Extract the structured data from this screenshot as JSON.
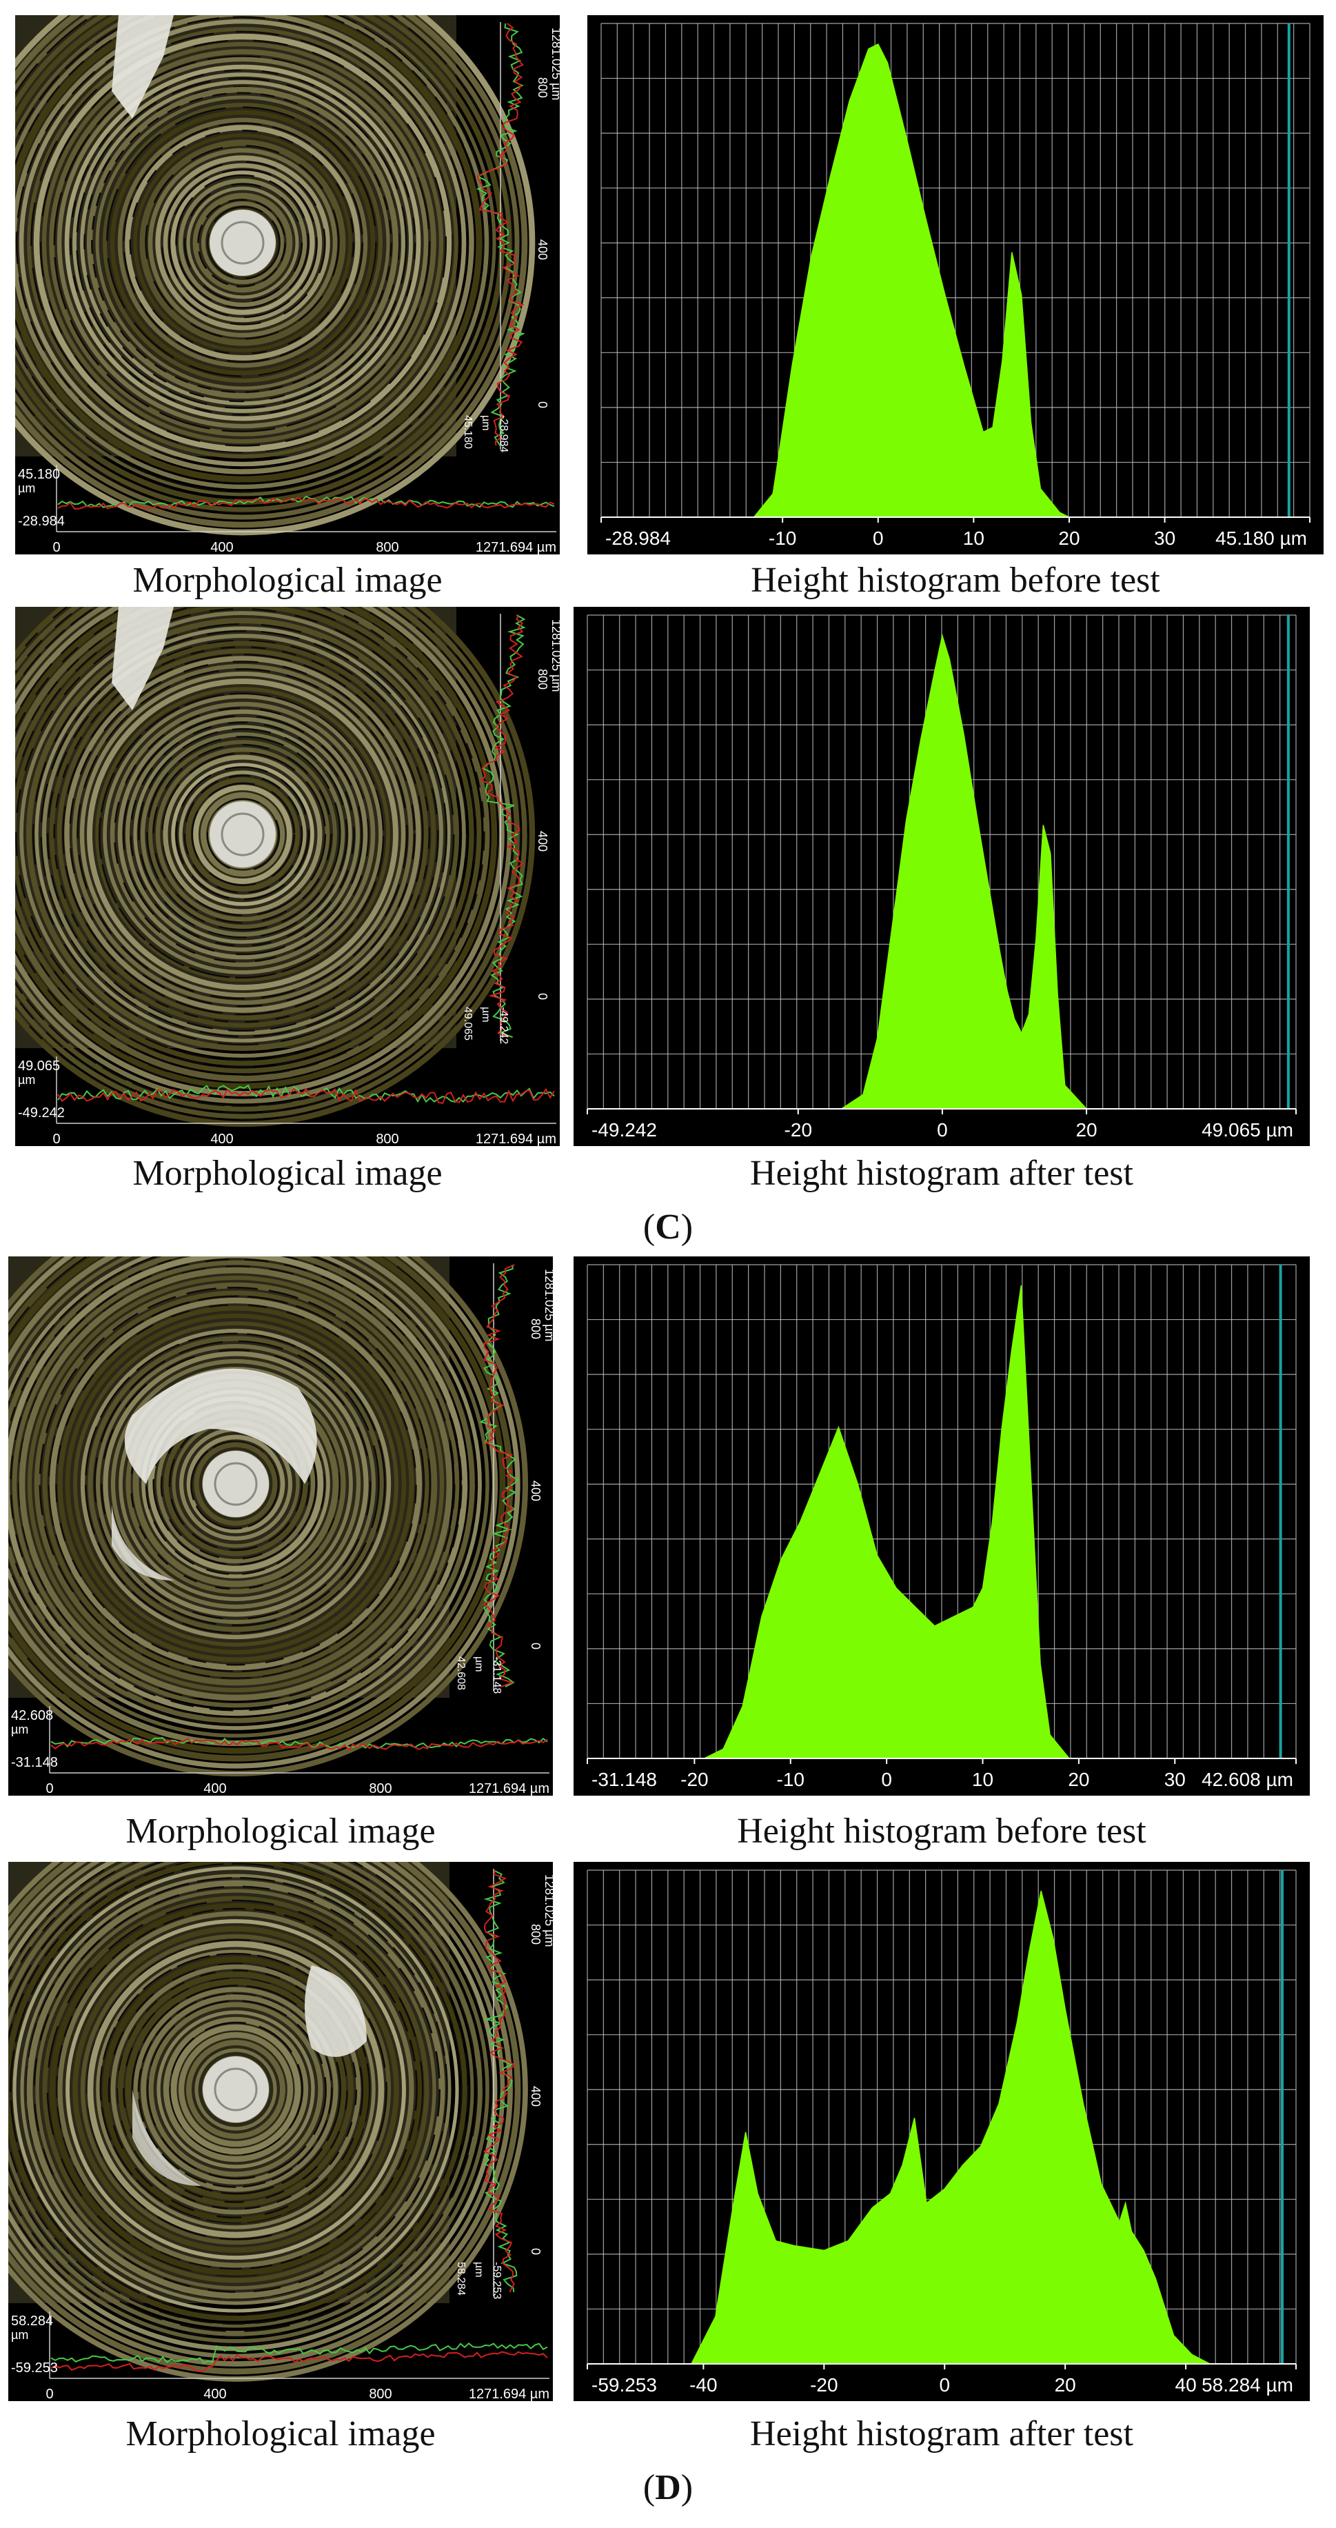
{
  "captions": {
    "morph": "Morphological image",
    "before": "Height histogram before test",
    "after": "Height histogram after test"
  },
  "section_labels": [
    {
      "open": "(",
      "letter": "C",
      "close": ")"
    },
    {
      "open": "(",
      "letter": "D",
      "close": ")"
    }
  ],
  "morph_panels": [
    {
      "x_ticks": [
        "0",
        "400",
        "800",
        "1271.694 µm"
      ],
      "v_max": "45.180",
      "v_min": "-28.984",
      "side_top": "1281.025 µm",
      "side_ticks": [
        "800",
        "400",
        "0"
      ],
      "side_vals": [
        "45.180",
        "µm",
        "-28.984"
      ]
    },
    {
      "x_ticks": [
        "0",
        "400",
        "800",
        "1271.694 µm"
      ],
      "v_max": "49.065",
      "v_min": "-49.242",
      "side_top": "1281.025 µm",
      "side_ticks": [
        "800",
        "400",
        "0"
      ],
      "side_vals": [
        "49.065",
        "µm",
        "-49.242"
      ]
    },
    {
      "x_ticks": [
        "0",
        "400",
        "800",
        "1271.694 µm"
      ],
      "v_max": "42.608",
      "v_min": "-31.148",
      "side_top": "1281.025 µm",
      "side_ticks": [
        "800",
        "400",
        "0"
      ],
      "side_vals": [
        "42.608",
        "µm",
        "-31.148"
      ]
    },
    {
      "x_ticks": [
        "0",
        "400",
        "800",
        "1271.694 µm"
      ],
      "v_max": "58.284",
      "v_min": "-59.253",
      "side_top": "1281.025 µm",
      "side_ticks": [
        "800",
        "400",
        "0"
      ],
      "side_vals": [
        "58.284",
        "µm",
        "-59.253"
      ]
    }
  ],
  "colors": {
    "histogram_fill": "#7cfc00",
    "grid": "#bfbfbf",
    "cursor": "#19a3a3",
    "profile_green": "#46c846",
    "profile_red": "#d22020",
    "panel_bg": "#000000"
  },
  "chart_data": [
    {
      "type": "area",
      "title": "",
      "xlabel": "",
      "ylabel": "",
      "xlim": [
        -28.984,
        45.18
      ],
      "x_ticks": [
        -28.984,
        -10,
        0,
        10,
        20,
        30,
        45.18
      ],
      "x_tick_labels": [
        "-28.984",
        "-10",
        "0",
        "10",
        "20",
        "30",
        "45.180 µm"
      ],
      "ylim": [
        0,
        1
      ],
      "cursor_at": 43,
      "x": [
        -28.984,
        -13,
        -11,
        -9,
        -7,
        -5,
        -3,
        -1,
        0,
        1,
        3,
        5,
        7,
        9,
        11,
        12,
        13,
        14,
        15,
        16,
        17,
        19,
        20,
        45.18
      ],
      "y": [
        0,
        0,
        0.05,
        0.32,
        0.55,
        0.72,
        0.88,
        0.99,
        1.0,
        0.96,
        0.8,
        0.63,
        0.47,
        0.32,
        0.18,
        0.19,
        0.33,
        0.56,
        0.47,
        0.2,
        0.06,
        0.01,
        0,
        0
      ]
    },
    {
      "type": "area",
      "title": "",
      "xlabel": "",
      "ylabel": "",
      "xlim": [
        -49.242,
        49.065
      ],
      "x_ticks": [
        -49.242,
        -20,
        0,
        20,
        49.065
      ],
      "x_tick_labels": [
        "-49.242",
        "-20",
        "0",
        "20",
        "49.065 µm"
      ],
      "ylim": [
        0,
        1
      ],
      "cursor_at": 48,
      "x": [
        -49.242,
        -14,
        -11,
        -9,
        -7,
        -5,
        -3,
        -1,
        0,
        1,
        3,
        5,
        7,
        8,
        9,
        10,
        11,
        12,
        13,
        14,
        15,
        16,
        17,
        20,
        49.065
      ],
      "y": [
        0,
        0,
        0.03,
        0.15,
        0.38,
        0.61,
        0.78,
        0.93,
        1.0,
        0.95,
        0.79,
        0.6,
        0.42,
        0.33,
        0.25,
        0.19,
        0.16,
        0.2,
        0.36,
        0.6,
        0.54,
        0.24,
        0.05,
        0,
        0
      ]
    },
    {
      "type": "area",
      "title": "",
      "xlabel": "",
      "ylabel": "",
      "xlim": [
        -31.148,
        42.608
      ],
      "x_ticks": [
        -31.148,
        -20,
        -10,
        0,
        10,
        20,
        30,
        42.608
      ],
      "x_tick_labels": [
        "-31.148",
        "-20",
        "-10",
        "0",
        "10",
        "20",
        "30",
        "42.608 µm"
      ],
      "ylim": [
        0,
        1
      ],
      "cursor_at": 41,
      "x": [
        -31.148,
        -19,
        -17,
        -15,
        -13,
        -11,
        -9,
        -7,
        -5,
        -3,
        -1,
        1,
        3,
        5,
        7,
        9,
        10,
        11,
        12,
        13,
        14,
        15,
        16,
        17,
        19,
        42.608
      ],
      "y": [
        0,
        0,
        0.02,
        0.11,
        0.3,
        0.42,
        0.5,
        0.6,
        0.7,
        0.58,
        0.43,
        0.36,
        0.32,
        0.28,
        0.3,
        0.32,
        0.36,
        0.5,
        0.7,
        0.86,
        1.0,
        0.6,
        0.2,
        0.05,
        0,
        0
      ]
    },
    {
      "type": "area",
      "title": "",
      "xlabel": "",
      "ylabel": "",
      "xlim": [
        -59.253,
        58.284
      ],
      "x_ticks": [
        -59.253,
        -40,
        -20,
        0,
        20,
        40,
        58.284
      ],
      "x_tick_labels": [
        "-59.253",
        "-40",
        "-20",
        "0",
        "20",
        "40",
        "58.284 µm"
      ],
      "ylim": [
        0,
        1
      ],
      "cursor_at": 56,
      "x": [
        -59.253,
        -42,
        -38,
        -35,
        -33,
        -31,
        -28,
        -25,
        -20,
        -16,
        -12,
        -9,
        -7,
        -5,
        -3,
        0,
        3,
        6,
        9,
        12,
        14,
        16,
        18,
        20,
        23,
        26,
        29,
        30,
        31,
        33,
        35,
        38,
        41,
        44,
        58.284
      ],
      "y": [
        0,
        0,
        0.1,
        0.34,
        0.49,
        0.36,
        0.26,
        0.25,
        0.24,
        0.26,
        0.33,
        0.36,
        0.42,
        0.52,
        0.34,
        0.37,
        0.42,
        0.46,
        0.55,
        0.72,
        0.87,
        1.0,
        0.9,
        0.75,
        0.55,
        0.38,
        0.3,
        0.34,
        0.28,
        0.24,
        0.18,
        0.06,
        0.02,
        0,
        0
      ]
    }
  ]
}
